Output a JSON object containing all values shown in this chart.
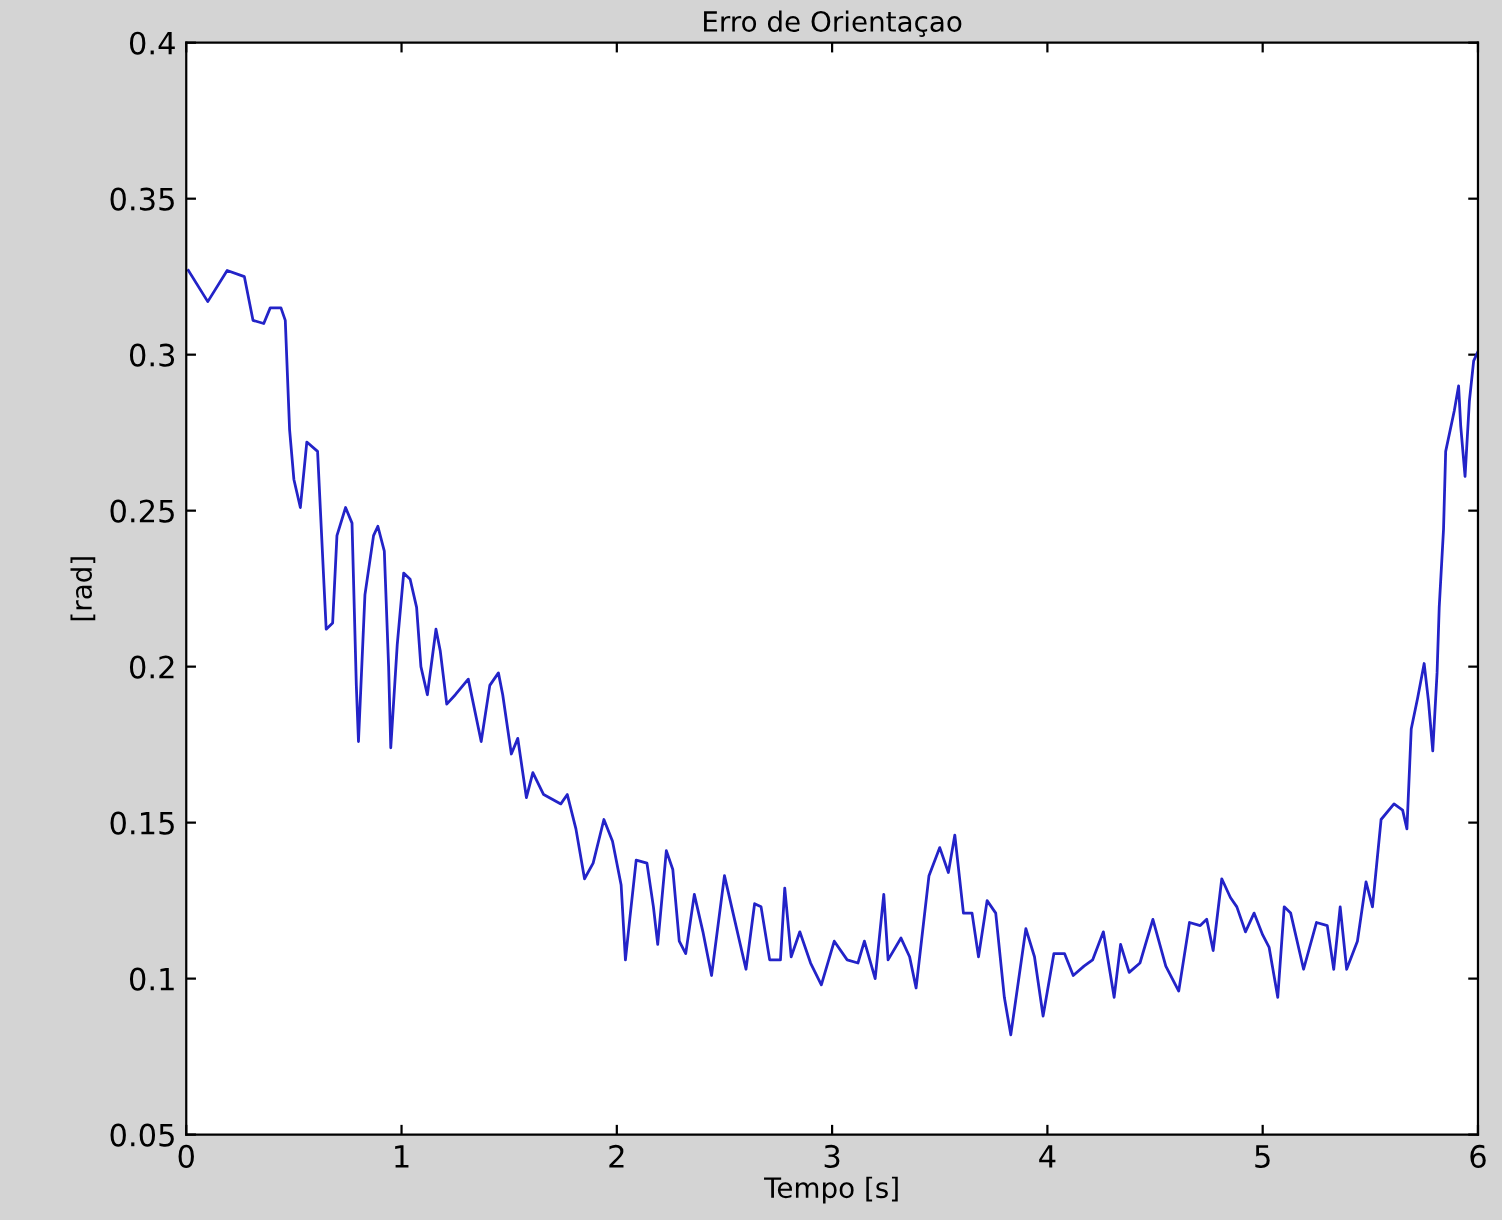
{
  "chart_data": {
    "type": "line",
    "title": "Erro de Orientaçao",
    "xlabel": "Tempo [s]",
    "ylabel": "[rad]",
    "xlim": [
      0,
      6
    ],
    "ylim": [
      0.05,
      0.4
    ],
    "xticks": [
      0,
      1,
      2,
      3,
      4,
      5,
      6
    ],
    "yticks": [
      0.05,
      0.1,
      0.15,
      0.2,
      0.25,
      0.3,
      0.35,
      0.4
    ],
    "grid": false,
    "legend": false,
    "series": [
      {
        "color": "#2323c8",
        "x": [
          0.01,
          0.1,
          0.19,
          0.27,
          0.31,
          0.36,
          0.39,
          0.44,
          0.46,
          0.48,
          0.5,
          0.53,
          0.56,
          0.61,
          0.64,
          0.65,
          0.68,
          0.7,
          0.74,
          0.77,
          0.79,
          0.8,
          0.83,
          0.87,
          0.89,
          0.92,
          0.94,
          0.95,
          0.98,
          1.01,
          1.04,
          1.07,
          1.09,
          1.12,
          1.16,
          1.18,
          1.21,
          1.25,
          1.31,
          1.37,
          1.41,
          1.45,
          1.47,
          1.51,
          1.54,
          1.58,
          1.61,
          1.66,
          1.74,
          1.77,
          1.81,
          1.85,
          1.89,
          1.94,
          1.98,
          2.02,
          2.04,
          2.06,
          2.09,
          2.14,
          2.17,
          2.19,
          2.23,
          2.26,
          2.29,
          2.32,
          2.36,
          2.4,
          2.44,
          2.5,
          2.54,
          2.6,
          2.64,
          2.67,
          2.71,
          2.76,
          2.78,
          2.81,
          2.85,
          2.9,
          2.95,
          3.01,
          3.07,
          3.12,
          3.15,
          3.2,
          3.24,
          3.26,
          3.32,
          3.36,
          3.39,
          3.45,
          3.5,
          3.54,
          3.57,
          3.61,
          3.65,
          3.68,
          3.72,
          3.76,
          3.8,
          3.83,
          3.9,
          3.94,
          3.98,
          4.03,
          4.08,
          4.12,
          4.17,
          4.21,
          4.26,
          4.31,
          4.34,
          4.38,
          4.43,
          4.49,
          4.55,
          4.61,
          4.66,
          4.71,
          4.74,
          4.77,
          4.81,
          4.85,
          4.88,
          4.92,
          4.96,
          5.0,
          5.03,
          5.07,
          5.1,
          5.13,
          5.19,
          5.25,
          5.3,
          5.33,
          5.36,
          5.39,
          5.44,
          5.48,
          5.51,
          5.55,
          5.61,
          5.65,
          5.67,
          5.69,
          5.72,
          5.75,
          5.77,
          5.79,
          5.81,
          5.82,
          5.84,
          5.85,
          5.89,
          5.91,
          5.92,
          5.94,
          5.96,
          5.98,
          6.0
        ],
        "values": [
          0.327,
          0.317,
          0.327,
          0.325,
          0.311,
          0.31,
          0.315,
          0.315,
          0.311,
          0.276,
          0.26,
          0.251,
          0.272,
          0.269,
          0.226,
          0.212,
          0.214,
          0.242,
          0.251,
          0.246,
          0.194,
          0.176,
          0.223,
          0.242,
          0.245,
          0.237,
          0.2,
          0.174,
          0.207,
          0.23,
          0.228,
          0.219,
          0.2,
          0.191,
          0.212,
          0.205,
          0.188,
          0.191,
          0.196,
          0.176,
          0.194,
          0.198,
          0.191,
          0.172,
          0.177,
          0.158,
          0.166,
          0.159,
          0.156,
          0.159,
          0.148,
          0.132,
          0.137,
          0.151,
          0.144,
          0.13,
          0.106,
          0.119,
          0.138,
          0.137,
          0.123,
          0.111,
          0.141,
          0.135,
          0.112,
          0.108,
          0.127,
          0.115,
          0.101,
          0.133,
          0.121,
          0.103,
          0.124,
          0.123,
          0.106,
          0.106,
          0.129,
          0.107,
          0.115,
          0.105,
          0.098,
          0.112,
          0.106,
          0.105,
          0.112,
          0.1,
          0.127,
          0.106,
          0.113,
          0.107,
          0.097,
          0.133,
          0.142,
          0.134,
          0.146,
          0.121,
          0.121,
          0.107,
          0.125,
          0.121,
          0.094,
          0.082,
          0.116,
          0.107,
          0.088,
          0.108,
          0.108,
          0.101,
          0.104,
          0.106,
          0.115,
          0.094,
          0.111,
          0.102,
          0.105,
          0.119,
          0.104,
          0.096,
          0.118,
          0.117,
          0.119,
          0.109,
          0.132,
          0.126,
          0.123,
          0.115,
          0.121,
          0.114,
          0.11,
          0.094,
          0.123,
          0.121,
          0.103,
          0.118,
          0.117,
          0.103,
          0.123,
          0.103,
          0.112,
          0.131,
          0.123,
          0.151,
          0.156,
          0.154,
          0.148,
          0.18,
          0.19,
          0.201,
          0.189,
          0.173,
          0.198,
          0.219,
          0.244,
          0.269,
          0.282,
          0.29,
          0.277,
          0.261,
          0.285,
          0.298,
          0.301
        ]
      }
    ]
  }
}
